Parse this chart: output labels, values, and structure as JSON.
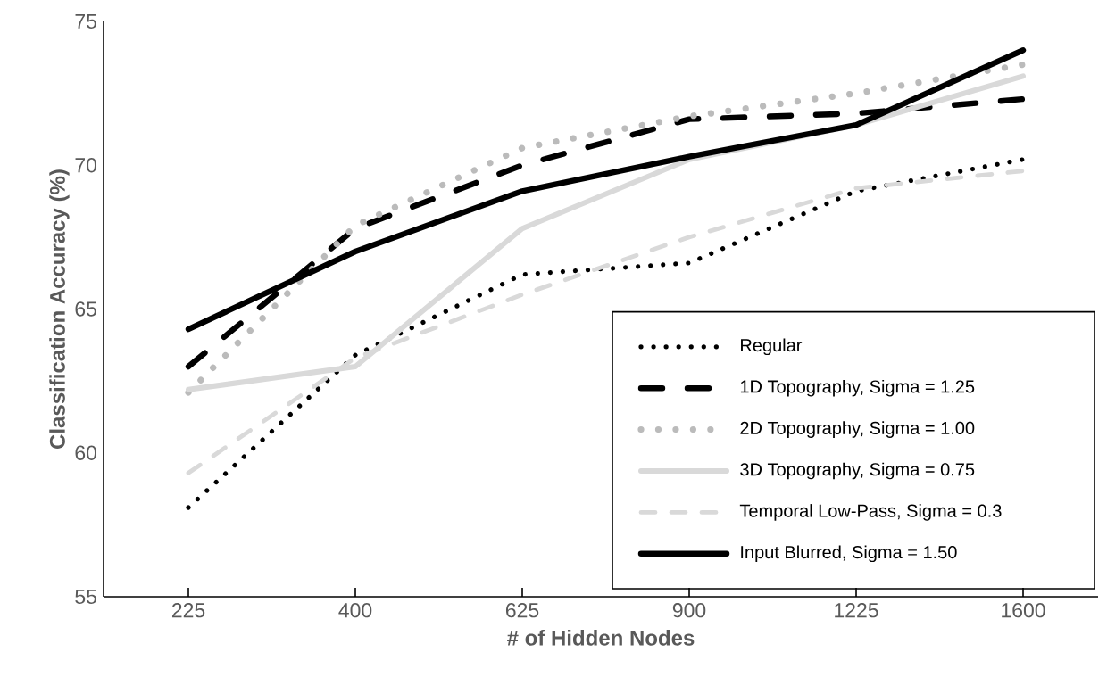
{
  "chart_data": {
    "type": "line",
    "xlabel": "# of Hidden Nodes",
    "ylabel": "Classification Accuracy (%)",
    "categories": [
      "225",
      "400",
      "625",
      "900",
      "1225",
      "1600"
    ],
    "ylim": [
      55,
      75
    ],
    "yticks": [
      55,
      60,
      65,
      70,
      75
    ],
    "grid": false,
    "legend": "bottom right",
    "marker": "none",
    "series": [
      {
        "name": "Regular",
        "color": "#000000",
        "line_style": "dotted",
        "values": [
          58.1,
          63.4,
          66.2,
          66.6,
          69.1,
          70.2
        ]
      },
      {
        "name": "1D Topography, Sigma = 1.25",
        "color": "#000000",
        "line_style": "dashed",
        "values": [
          63.0,
          67.8,
          70.0,
          71.6,
          71.8,
          72.3
        ]
      },
      {
        "name": "2D Topography, Sigma = 1.00",
        "color": "#bbbbbb",
        "line_style": "dotted",
        "values": [
          62.1,
          67.9,
          70.6,
          71.7,
          72.5,
          73.5
        ]
      },
      {
        "name": "3D Topography, Sigma = 0.75",
        "color": "#d9d9d9",
        "line_style": "solid",
        "values": [
          62.2,
          63.0,
          67.8,
          70.2,
          71.4,
          73.1
        ]
      },
      {
        "name": "Temporal Low-Pass, Sigma = 0.3",
        "color": "#d9d9d9",
        "line_style": "dashed",
        "values": [
          59.3,
          63.3,
          65.5,
          67.5,
          69.2,
          69.8
        ]
      },
      {
        "name": "Input Blurred, Sigma = 1.50",
        "color": "#000000",
        "line_style": "solid",
        "values": [
          64.3,
          67.0,
          69.1,
          70.3,
          71.4,
          74.0
        ]
      }
    ]
  }
}
